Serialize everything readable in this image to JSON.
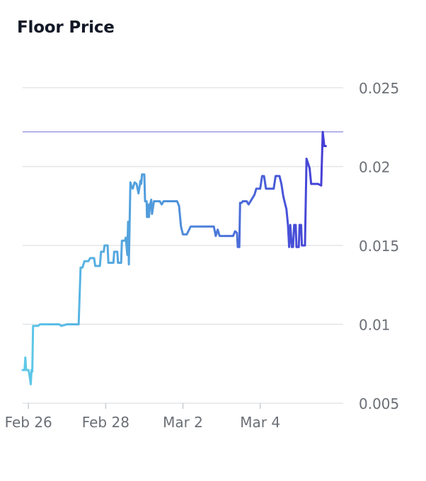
{
  "title": "Floor Price",
  "colors": {
    "line_start": "#5ec9e8",
    "line_mid": "#4f95db",
    "line_end": "#4433d6",
    "grid": "#e3e5e8",
    "ref_line": "#6d6ad8",
    "axis_text": "#6b6f76",
    "title_text": "#121826"
  },
  "chart_data": {
    "type": "line",
    "title": "Floor Price",
    "xlabel": "",
    "ylabel": "",
    "x_ticks": [
      "Feb 26",
      "Feb 28",
      "Mar 2",
      "Mar 4"
    ],
    "y_ticks": [
      "0.005",
      "0.01",
      "0.015",
      "0.02",
      "0.025"
    ],
    "y_tick_values": [
      0.005,
      0.01,
      0.015,
      0.02,
      0.025
    ],
    "ylim": [
      0.005,
      0.025
    ],
    "x_unit": "days since start of Feb 25",
    "xlim": [
      1.05,
      9.35
    ],
    "x_tick_values": [
      1.2,
      3.2,
      5.2,
      7.2
    ],
    "y_axis_position": "right",
    "grid": true,
    "reference_line": 0.0222,
    "series": [
      {
        "name": "",
        "points": [
          [
            1.05,
            0.0071
          ],
          [
            1.1,
            0.0071
          ],
          [
            1.12,
            0.0079
          ],
          [
            1.14,
            0.0071
          ],
          [
            1.2,
            0.0071
          ],
          [
            1.22,
            0.0069
          ],
          [
            1.26,
            0.0062
          ],
          [
            1.28,
            0.0071
          ],
          [
            1.3,
            0.007
          ],
          [
            1.32,
            0.0099
          ],
          [
            1.45,
            0.0099
          ],
          [
            1.5,
            0.01
          ],
          [
            2.0,
            0.01
          ],
          [
            2.05,
            0.0099
          ],
          [
            2.2,
            0.01
          ],
          [
            2.5,
            0.01
          ],
          [
            2.55,
            0.0136
          ],
          [
            2.6,
            0.0136
          ],
          [
            2.65,
            0.014
          ],
          [
            2.75,
            0.014
          ],
          [
            2.8,
            0.0142
          ],
          [
            2.9,
            0.0142
          ],
          [
            2.93,
            0.0137
          ],
          [
            3.05,
            0.0137
          ],
          [
            3.08,
            0.0146
          ],
          [
            3.15,
            0.0146
          ],
          [
            3.17,
            0.015
          ],
          [
            3.25,
            0.015
          ],
          [
            3.27,
            0.0139
          ],
          [
            3.4,
            0.0139
          ],
          [
            3.42,
            0.0146
          ],
          [
            3.5,
            0.0146
          ],
          [
            3.52,
            0.0139
          ],
          [
            3.6,
            0.0139
          ],
          [
            3.62,
            0.0153
          ],
          [
            3.7,
            0.0153
          ],
          [
            3.72,
            0.0155
          ],
          [
            3.76,
            0.0144
          ],
          [
            3.78,
            0.0165
          ],
          [
            3.8,
            0.0138
          ],
          [
            3.84,
            0.019
          ],
          [
            3.86,
            0.0188
          ],
          [
            3.9,
            0.0186
          ],
          [
            3.95,
            0.019
          ],
          [
            4.0,
            0.0189
          ],
          [
            4.05,
            0.0183
          ],
          [
            4.1,
            0.0191
          ],
          [
            4.12,
            0.0189
          ],
          [
            4.14,
            0.0195
          ],
          [
            4.2,
            0.0195
          ],
          [
            4.22,
            0.0178
          ],
          [
            4.26,
            0.0178
          ],
          [
            4.27,
            0.0168
          ],
          [
            4.3,
            0.0176
          ],
          [
            4.32,
            0.0168
          ],
          [
            4.35,
            0.0176
          ],
          [
            4.38,
            0.0179
          ],
          [
            4.4,
            0.017
          ],
          [
            4.45,
            0.0178
          ],
          [
            4.6,
            0.0178
          ],
          [
            4.65,
            0.0176
          ],
          [
            4.7,
            0.0178
          ],
          [
            4.9,
            0.0178
          ],
          [
            5.05,
            0.0178
          ],
          [
            5.1,
            0.0175
          ],
          [
            5.15,
            0.0162
          ],
          [
            5.2,
            0.0157
          ],
          [
            5.3,
            0.0157
          ],
          [
            5.4,
            0.0162
          ],
          [
            6.0,
            0.0162
          ],
          [
            6.05,
            0.0156
          ],
          [
            6.1,
            0.016
          ],
          [
            6.15,
            0.0156
          ],
          [
            6.5,
            0.0156
          ],
          [
            6.55,
            0.0159
          ],
          [
            6.6,
            0.0158
          ],
          [
            6.62,
            0.0149
          ],
          [
            6.66,
            0.0149
          ],
          [
            6.68,
            0.0177
          ],
          [
            6.72,
            0.0177
          ],
          [
            6.75,
            0.0178
          ],
          [
            6.85,
            0.0178
          ],
          [
            6.9,
            0.0176
          ],
          [
            6.95,
            0.0178
          ],
          [
            7.05,
            0.0182
          ],
          [
            7.1,
            0.0186
          ],
          [
            7.2,
            0.0186
          ],
          [
            7.25,
            0.0194
          ],
          [
            7.3,
            0.0194
          ],
          [
            7.35,
            0.0186
          ],
          [
            7.55,
            0.0186
          ],
          [
            7.6,
            0.0194
          ],
          [
            7.7,
            0.0194
          ],
          [
            7.75,
            0.0189
          ],
          [
            7.8,
            0.0181
          ],
          [
            7.88,
            0.0173
          ],
          [
            7.92,
            0.0163
          ],
          [
            7.95,
            0.0149
          ],
          [
            7.98,
            0.0163
          ],
          [
            8.02,
            0.0149
          ],
          [
            8.05,
            0.0149
          ],
          [
            8.08,
            0.0163
          ],
          [
            8.12,
            0.0163
          ],
          [
            8.14,
            0.0149
          ],
          [
            8.2,
            0.0149
          ],
          [
            8.22,
            0.0163
          ],
          [
            8.26,
            0.0163
          ],
          [
            8.28,
            0.015
          ],
          [
            8.36,
            0.015
          ],
          [
            8.4,
            0.0205
          ],
          [
            8.48,
            0.0199
          ],
          [
            8.52,
            0.0189
          ],
          [
            8.6,
            0.0189
          ],
          [
            8.7,
            0.0189
          ],
          [
            8.78,
            0.0188
          ],
          [
            8.82,
            0.0222
          ],
          [
            8.86,
            0.0213
          ],
          [
            8.9,
            0.0213
          ]
        ]
      }
    ]
  }
}
